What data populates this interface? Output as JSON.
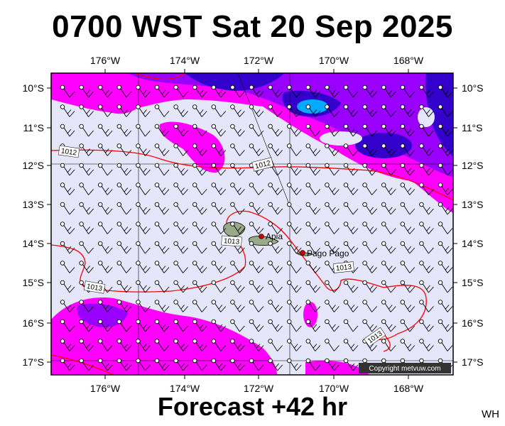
{
  "title": "0700 WST Sat 20 Sep 2025",
  "subtitle": "Forecast +42 hr",
  "corner_text": "WH",
  "copyright": "Copyright metvuw.com",
  "x_ticks": [
    "176°W",
    "174°W",
    "172°W",
    "170°W",
    "168°W"
  ],
  "y_ticks": [
    "10°S",
    "11°S",
    "12°S",
    "13°S",
    "14°S",
    "15°S",
    "16°S",
    "17°S"
  ],
  "places": [
    {
      "name": "Apia",
      "lon": -171.76,
      "lat": -13.83
    },
    {
      "name": "Pago Pago",
      "lon": -170.7,
      "lat": -14.28
    }
  ],
  "isobar_labels": [
    "1012",
    "1012",
    "1013",
    "1013",
    "1013",
    "1013"
  ],
  "colors": {
    "background": "#e6e6fa",
    "precip_light": "#ff00ff",
    "precip_medium": "#9900ff",
    "precip_heavy": "#3300cc",
    "precip_extreme": "#00aaff",
    "isobar": "#ff0000",
    "land": "#99aa88",
    "wind_barb": "#000000"
  }
}
